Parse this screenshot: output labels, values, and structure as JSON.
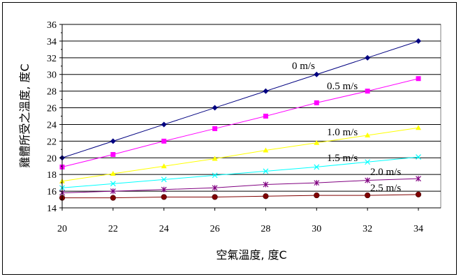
{
  "chart_data": {
    "type": "line",
    "title": "",
    "xlabel": "空氣溫度, 度C",
    "ylabel": "雞體所受之溫度, 度C",
    "x": [
      20,
      22,
      24,
      26,
      28,
      30,
      32,
      34
    ],
    "xlim": [
      20,
      34
    ],
    "ylim": [
      14,
      36
    ],
    "x_ticks": [
      "20",
      "22",
      "24",
      "26",
      "28",
      "30",
      "32",
      "34"
    ],
    "y_ticks": [
      "14",
      "16",
      "18",
      "20",
      "22",
      "24",
      "26",
      "28",
      "30",
      "32",
      "34",
      "36"
    ],
    "grid": "horizontal",
    "legend": "none",
    "series": [
      {
        "name": "0 m/s",
        "color": "#000080",
        "marker": "diamond",
        "values": [
          20,
          22,
          24,
          26,
          28,
          30,
          32,
          34
        ]
      },
      {
        "name": "0.5 m/s",
        "color": "#ff00ff",
        "marker": "square",
        "values": [
          18.9,
          20.4,
          22.0,
          23.5,
          25.0,
          26.6,
          28.0,
          29.5
        ]
      },
      {
        "name": "1.0 m/s",
        "color": "#ffff00",
        "marker": "triangle",
        "values": [
          17.2,
          18.1,
          19.0,
          19.9,
          20.9,
          21.8,
          22.7,
          23.6
        ]
      },
      {
        "name": "1.5 m/s",
        "color": "#00ffff",
        "marker": "x",
        "values": [
          16.4,
          16.9,
          17.4,
          17.9,
          18.4,
          18.9,
          19.5,
          20.1
        ]
      },
      {
        "name": "2.0 m/s",
        "color": "#800080",
        "marker": "star",
        "values": [
          15.8,
          16.0,
          16.2,
          16.4,
          16.8,
          17.0,
          17.3,
          17.5
        ]
      },
      {
        "name": "2.5 m/s",
        "color": "#800000",
        "marker": "circle",
        "values": [
          15.2,
          15.2,
          15.3,
          15.3,
          15.4,
          15.5,
          15.5,
          15.6
        ]
      }
    ]
  }
}
